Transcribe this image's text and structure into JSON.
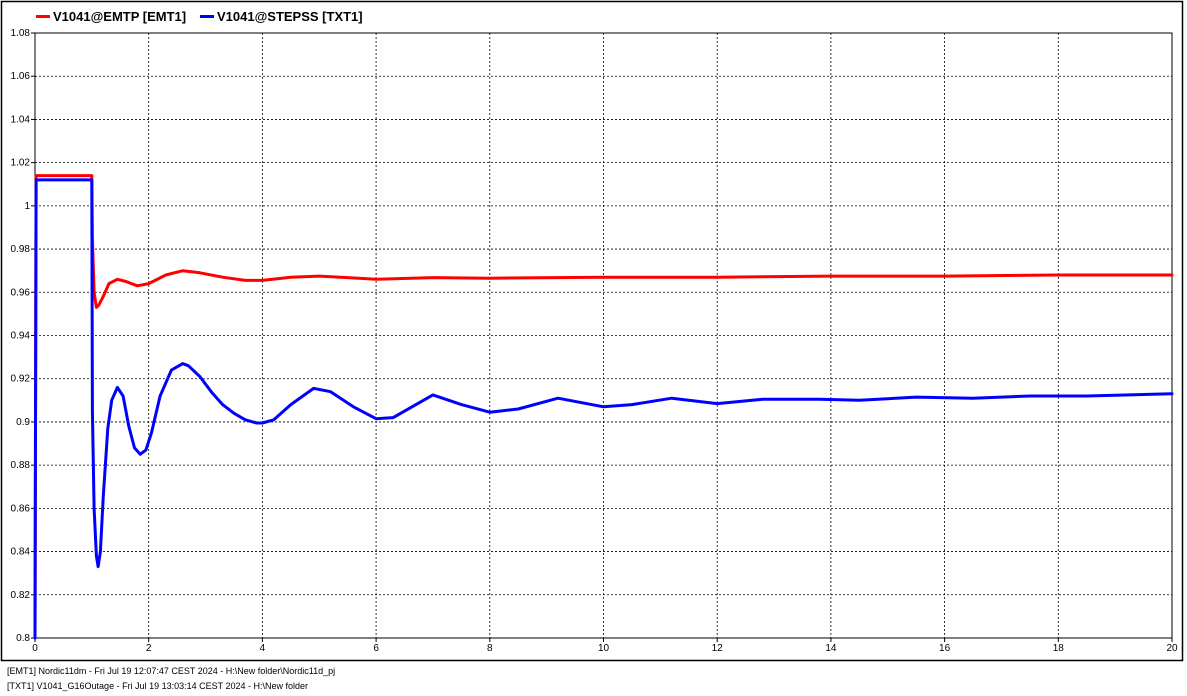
{
  "chart_data": {
    "type": "line",
    "title": "",
    "xlabel": "",
    "ylabel": "",
    "xlim": [
      0,
      20
    ],
    "ylim": [
      0.8,
      1.08
    ],
    "grid": true,
    "legend_position": "top-left",
    "x_ticks": [
      "0",
      "2",
      "4",
      "6",
      "8",
      "10",
      "12",
      "14",
      "16",
      "18",
      "20"
    ],
    "y_ticks": [
      "0.8",
      "0.82",
      "0.84",
      "0.86",
      "0.88",
      "0.9",
      "0.92",
      "0.94",
      "0.96",
      "0.98",
      "1",
      "1.02",
      "1.04",
      "1.06",
      "1.08"
    ],
    "series": [
      {
        "name": "V1041@EMTP [EMT1]",
        "color": "#ff0000",
        "x": [
          0,
          0.02,
          1.0,
          1.01,
          1.04,
          1.08,
          1.12,
          1.2,
          1.3,
          1.45,
          1.6,
          1.8,
          2.0,
          2.3,
          2.6,
          2.9,
          3.3,
          3.7,
          4.0,
          4.5,
          5.0,
          5.5,
          6.0,
          7.0,
          8.0,
          10.0,
          12.0,
          14.0,
          16.0,
          18.0,
          20.0
        ],
        "y": [
          0.8,
          1.014,
          1.014,
          0.985,
          0.96,
          0.953,
          0.954,
          0.958,
          0.964,
          0.966,
          0.965,
          0.963,
          0.964,
          0.968,
          0.97,
          0.969,
          0.967,
          0.9655,
          0.9655,
          0.967,
          0.9675,
          0.9668,
          0.966,
          0.9668,
          0.9665,
          0.967,
          0.967,
          0.9675,
          0.9675,
          0.968,
          0.968
        ]
      },
      {
        "name": "V1041@STEPSS [TXT1]",
        "color": "#0000ff",
        "x": [
          0,
          0.02,
          1.0,
          1.01,
          1.04,
          1.08,
          1.11,
          1.15,
          1.2,
          1.28,
          1.35,
          1.45,
          1.55,
          1.65,
          1.75,
          1.85,
          1.95,
          2.05,
          2.2,
          2.4,
          2.6,
          2.7,
          2.9,
          3.1,
          3.3,
          3.5,
          3.7,
          3.9,
          4.0,
          4.2,
          4.5,
          4.9,
          5.2,
          5.6,
          6.0,
          6.3,
          7.0,
          7.5,
          8.0,
          8.5,
          9.2,
          10.0,
          10.5,
          11.2,
          12.0,
          12.8,
          13.8,
          14.5,
          15.5,
          16.5,
          17.5,
          18.5,
          20.0
        ],
        "y": [
          0.8,
          1.012,
          1.012,
          0.905,
          0.86,
          0.838,
          0.833,
          0.84,
          0.865,
          0.897,
          0.91,
          0.916,
          0.912,
          0.898,
          0.888,
          0.885,
          0.887,
          0.895,
          0.912,
          0.924,
          0.927,
          0.926,
          0.921,
          0.914,
          0.908,
          0.904,
          0.901,
          0.8995,
          0.8995,
          0.901,
          0.908,
          0.9155,
          0.914,
          0.907,
          0.9015,
          0.902,
          0.9125,
          0.908,
          0.9045,
          0.906,
          0.911,
          0.907,
          0.908,
          0.911,
          0.9085,
          0.9105,
          0.9105,
          0.91,
          0.9115,
          0.911,
          0.912,
          0.912,
          0.913
        ]
      }
    ]
  },
  "footer": {
    "line1": "[EMT1] Nordic11dm - Fri Jul 19 12:07:47 CEST 2024 - H:\\New folder\\Nordic11d_pj",
    "line2": "[TXT1] V1041_G16Outage - Fri Jul 19 13:03:14 CEST 2024 - H:\\New folder"
  }
}
